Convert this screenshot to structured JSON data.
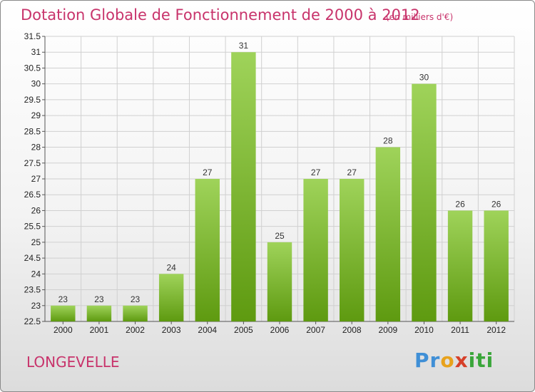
{
  "title": "Dotation Globale de Fonctionnement de 2000 à 2012",
  "subtitle": "(en milliers d'€)",
  "commune": "LONGEVELLE",
  "logo": {
    "parts": [
      "Pr",
      "o",
      "x",
      "iti"
    ]
  },
  "colors": {
    "bar_light": "#9fd35a",
    "bar_dark": "#5e9a10",
    "title": "#c8336b",
    "grid": "#d0d0d0"
  },
  "chart_data": {
    "type": "bar",
    "title": "Dotation Globale de Fonctionnement de 2000 à 2012",
    "xlabel": "",
    "ylabel": "",
    "categories": [
      "2000",
      "2001",
      "2002",
      "2003",
      "2004",
      "2005",
      "2006",
      "2007",
      "2008",
      "2009",
      "2010",
      "2011",
      "2012"
    ],
    "values": [
      23,
      23,
      23,
      24,
      27,
      31,
      25,
      27,
      27,
      28,
      30,
      26,
      26
    ],
    "data_labels": [
      "23",
      "23",
      "23",
      "24",
      "27",
      "31",
      "25",
      "27",
      "27",
      "28",
      "30",
      "26",
      "26"
    ],
    "ylim": [
      22.5,
      31.5
    ],
    "yticks": [
      "22.5",
      "23",
      "23.5",
      "24",
      "24.5",
      "25",
      "25.5",
      "26",
      "26.5",
      "27",
      "27.5",
      "28",
      "28.5",
      "29",
      "29.5",
      "30",
      "30.5",
      "31",
      "31.5"
    ],
    "grid": true,
    "legend": "none"
  }
}
